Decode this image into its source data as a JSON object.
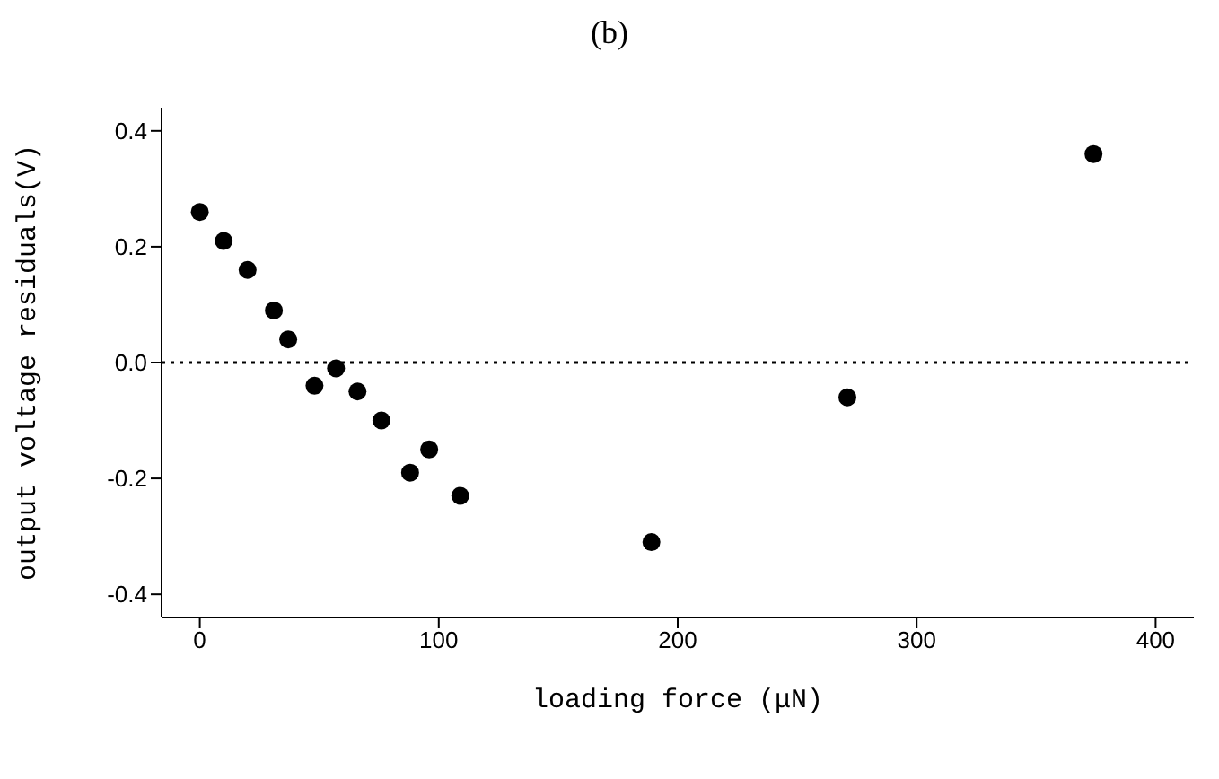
{
  "chart_data": {
    "type": "scatter",
    "title": "(b)",
    "xlabel": "loading force (μN)",
    "ylabel": "output voltage residuals(V)",
    "x": [
      0,
      10,
      20,
      31,
      37,
      48,
      57,
      66,
      76,
      88,
      96,
      109,
      189,
      271,
      374
    ],
    "series": [
      {
        "color": "#000000",
        "values": [
          0.26,
          0.21,
          0.16,
          0.09,
          0.04,
          -0.04,
          -0.01,
          -0.05,
          -0.1,
          -0.19,
          -0.15,
          -0.23,
          -0.31,
          -0.06,
          0.36
        ]
      }
    ],
    "xlim": [
      -16,
      416
    ],
    "xticks": [
      0,
      100,
      200,
      300,
      400
    ],
    "ylim": [
      -0.44,
      0.44
    ],
    "yticks": [
      0.4,
      0.2,
      {
        "value": 0,
        "label": "0.0"
      },
      -0.2,
      -0.4
    ],
    "ref_lines": [
      {
        "axis": "y",
        "value": 0,
        "line_style": "dotted",
        "color": "#000000"
      }
    ],
    "grid": false,
    "legend": false,
    "marker": "circle"
  }
}
